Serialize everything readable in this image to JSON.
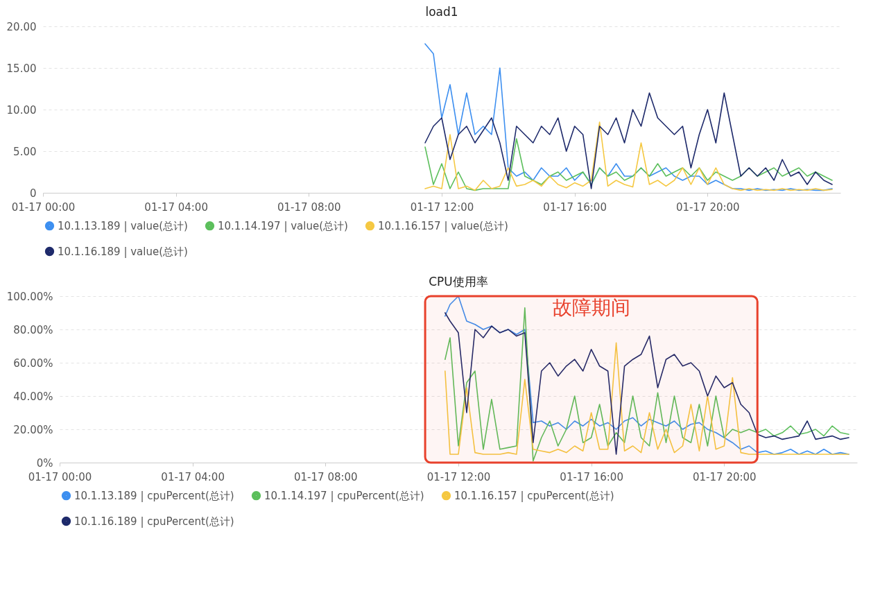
{
  "chart_data": [
    {
      "type": "line",
      "title": "load1",
      "legend": "bottom",
      "grid": "y",
      "line_style": "solid",
      "x": [
        "--01-17T11:30",
        "--01-17T11:45",
        "--01-17T12:00",
        "--01-17T12:15",
        "--01-17T12:30",
        "--01-17T12:45",
        "--01-17T13:00",
        "--01-17T13:15",
        "--01-17T13:30",
        "--01-17T13:45",
        "--01-17T14:00",
        "--01-17T14:15",
        "--01-17T14:30",
        "--01-17T14:45",
        "--01-17T15:00",
        "--01-17T15:15",
        "--01-17T15:30",
        "--01-17T15:45",
        "--01-17T16:00",
        "--01-17T16:15",
        "--01-17T16:30",
        "--01-17T16:45",
        "--01-17T17:00",
        "--01-17T17:15",
        "--01-17T17:30",
        "--01-17T17:45",
        "--01-17T18:00",
        "--01-17T18:15",
        "--01-17T18:30",
        "--01-17T18:45",
        "--01-17T19:00",
        "--01-17T19:15",
        "--01-17T19:30",
        "--01-17T19:45",
        "--01-17T20:00",
        "--01-17T20:15",
        "--01-17T20:30",
        "--01-17T20:45",
        "--01-17T21:00",
        "--01-17T21:15",
        "--01-17T21:30",
        "--01-17T21:45",
        "--01-17T22:00",
        "--01-17T22:15",
        "--01-17T22:30",
        "--01-17T22:45",
        "--01-17T23:00",
        "--01-17T23:15",
        "--01-17T23:30",
        "--01-17T23:45"
      ],
      "xlim": [
        "--01-17T00:00",
        "--01-18T00:00"
      ],
      "xticks": [
        {
          "value": "--01-17T00:00",
          "label": "01-17 00:00"
        },
        {
          "value": "--01-17T04:00",
          "label": "01-17 04:00"
        },
        {
          "value": "--01-17T08:00",
          "label": "01-17 08:00"
        },
        {
          "value": "--01-17T12:00",
          "label": "01-17 12:00"
        },
        {
          "value": "--01-17T16:00",
          "label": "01-17 16:00"
        },
        {
          "value": "--01-17T20:00",
          "label": "01-17 20:00"
        }
      ],
      "ylim": [
        0,
        20
      ],
      "yticks": [
        0,
        {
          "value": 5,
          "label": "5.00"
        },
        {
          "value": 10,
          "label": "10.00"
        },
        {
          "value": 15,
          "label": "15.00"
        },
        {
          "value": 20,
          "label": "20.00"
        }
      ],
      "series": [
        {
          "name": "10.1.13.189 | value(总计)",
          "color": "#3d8ff0",
          "values": [
            17.9,
            16.7,
            9,
            13,
            7,
            12,
            7,
            8,
            7,
            15,
            3,
            2,
            2.5,
            1.5,
            3,
            2,
            2,
            3,
            1.5,
            2.5,
            1,
            3,
            2,
            3.5,
            2,
            2,
            3,
            2,
            2.5,
            3,
            2,
            1.5,
            2,
            2,
            1,
            1.5,
            1,
            0.5,
            0.5,
            0.3,
            0.5,
            0.3,
            0.4,
            0.3,
            0.5,
            0.3,
            0.4,
            0.3,
            0.3,
            0.5
          ]
        },
        {
          "name": "10.1.14.197 | value(总计)",
          "color": "#5cbf5c",
          "values": [
            5.5,
            1,
            3.5,
            0.5,
            2.5,
            0.5,
            0.3,
            0.5,
            0.5,
            0.5,
            0.5,
            6.5,
            2,
            1.5,
            1,
            2,
            2.5,
            1.5,
            2,
            2.5,
            1,
            3,
            2,
            2.5,
            1.5,
            2,
            3,
            2,
            3.5,
            2,
            2.5,
            3,
            2,
            3,
            1.5,
            2.5,
            2,
            1.5,
            2,
            3,
            2,
            2.5,
            3,
            2,
            2.5,
            3,
            2,
            2.5,
            2,
            1.5
          ]
        },
        {
          "name": "10.1.16.157 | value(总计)",
          "color": "#f5c842",
          "values": [
            0.5,
            0.8,
            0.5,
            7,
            0.5,
            0.8,
            0.3,
            1.5,
            0.5,
            0.8,
            3,
            0.8,
            1,
            1.5,
            0.8,
            2,
            1,
            0.6,
            1.2,
            0.8,
            1.5,
            8.5,
            0.8,
            1.5,
            1,
            0.7,
            6,
            1,
            1.5,
            0.8,
            1.5,
            3,
            1,
            3,
            1,
            3,
            1,
            0.5,
            0.3,
            0.5,
            0.3,
            0.4,
            0.3,
            0.5,
            0.3,
            0.4,
            0.3,
            0.5,
            0.3,
            0.4
          ]
        },
        {
          "name": "10.1.16.189 | value(总计)",
          "color": "#1e2a6b",
          "values": [
            6,
            8,
            9,
            4,
            7,
            8,
            6,
            7.5,
            9,
            6,
            1.5,
            8,
            7,
            6,
            8,
            7,
            9,
            5,
            8,
            7,
            0.5,
            8,
            7,
            9,
            6,
            10,
            8,
            12,
            9,
            8,
            7,
            8,
            3,
            7,
            10,
            6,
            12,
            7,
            2,
            3,
            2,
            3,
            1.5,
            4,
            2,
            2.5,
            1,
            2.5,
            1.5,
            1
          ]
        }
      ]
    },
    {
      "type": "line",
      "title": "CPU使用率",
      "legend": "bottom",
      "grid": "y",
      "line_style": "solid",
      "x": [
        "--01-17T11:36",
        "--01-17T11:45",
        "--01-17T12:00",
        "--01-17T12:15",
        "--01-17T12:30",
        "--01-17T12:45",
        "--01-17T13:00",
        "--01-17T13:15",
        "--01-17T13:30",
        "--01-17T13:45",
        "--01-17T14:00",
        "--01-17T14:15",
        "--01-17T14:30",
        "--01-17T14:45",
        "--01-17T15:00",
        "--01-17T15:15",
        "--01-17T15:30",
        "--01-17T15:45",
        "--01-17T16:00",
        "--01-17T16:15",
        "--01-17T16:30",
        "--01-17T16:45",
        "--01-17T17:00",
        "--01-17T17:15",
        "--01-17T17:30",
        "--01-17T17:45",
        "--01-17T18:00",
        "--01-17T18:15",
        "--01-17T18:30",
        "--01-17T18:45",
        "--01-17T19:00",
        "--01-17T19:15",
        "--01-17T19:30",
        "--01-17T19:45",
        "--01-17T20:00",
        "--01-17T20:15",
        "--01-17T20:30",
        "--01-17T20:45",
        "--01-17T21:00",
        "--01-17T21:15",
        "--01-17T21:30",
        "--01-17T21:45",
        "--01-17T22:00",
        "--01-17T22:15",
        "--01-17T22:30",
        "--01-17T22:45",
        "--01-17T23:00",
        "--01-17T23:15",
        "--01-17T23:30",
        "--01-17T23:45"
      ],
      "xlim": [
        "--01-17T00:00",
        "--01-18T00:00"
      ],
      "xticks": [
        {
          "value": "--01-17T00:00",
          "label": "01-17 00:00"
        },
        {
          "value": "--01-17T04:00",
          "label": "01-17 04:00"
        },
        {
          "value": "--01-17T08:00",
          "label": "01-17 08:00"
        },
        {
          "value": "--01-17T12:00",
          "label": "01-17 12:00"
        },
        {
          "value": "--01-17T16:00",
          "label": "01-17 16:00"
        },
        {
          "value": "--01-17T20:00",
          "label": "01-17 20:00"
        }
      ],
      "ylim": [
        0,
        100
      ],
      "yticks": [
        {
          "value": 0,
          "label": "0%"
        },
        {
          "value": 20,
          "label": "20.00%"
        },
        {
          "value": 40,
          "label": "40.00%"
        },
        {
          "value": 60,
          "label": "60.00%"
        },
        {
          "value": 80,
          "label": "80.00%"
        },
        {
          "value": 100,
          "label": "100.00%"
        }
      ],
      "bands": [
        {
          "axis": "x",
          "from": "--01-17T11:00",
          "to": "--01-17T21:00",
          "label": "故障期间",
          "color": "#e8412c"
        }
      ],
      "series": [
        {
          "name": "10.1.13.189 | cpuPercent(总计)",
          "color": "#3d8ff0",
          "values": [
            88,
            95,
            100,
            85,
            83,
            80,
            82,
            78,
            80,
            77,
            80,
            24,
            25,
            22,
            24,
            20,
            25,
            22,
            26,
            22,
            24,
            20,
            25,
            27,
            22,
            26,
            24,
            22,
            25,
            20,
            23,
            24,
            20,
            18,
            15,
            12,
            8,
            10,
            6,
            7,
            5,
            6,
            8,
            5,
            7,
            5,
            8,
            5,
            6,
            5
          ]
        },
        {
          "name": "10.1.14.197 | cpuPercent(总计)",
          "color": "#5cbf5c",
          "values": [
            62,
            75,
            10,
            48,
            55,
            8,
            38,
            8,
            9,
            10,
            93,
            1,
            15,
            25,
            10,
            20,
            40,
            12,
            15,
            35,
            10,
            18,
            12,
            40,
            15,
            10,
            42,
            12,
            40,
            15,
            12,
            35,
            10,
            40,
            15,
            20,
            18,
            20,
            18,
            20,
            16,
            18,
            22,
            17,
            18,
            20,
            16,
            22,
            18,
            17
          ]
        },
        {
          "name": "10.1.16.157 | cpuPercent(总计)",
          "color": "#f5c842",
          "values": [
            55,
            5,
            5,
            45,
            6,
            5,
            5,
            5,
            6,
            5,
            50,
            8,
            7,
            6,
            8,
            6,
            10,
            7,
            30,
            8,
            8,
            72,
            7,
            10,
            6,
            30,
            8,
            20,
            6,
            10,
            35,
            7,
            40,
            8,
            10,
            51,
            6,
            5,
            5,
            5,
            5,
            5,
            5,
            5,
            5,
            5,
            5,
            5,
            5,
            5
          ]
        },
        {
          "name": "10.1.16.189 | cpuPercent(总计)",
          "color": "#1e2a6b",
          "values": [
            90,
            85,
            78,
            30,
            80,
            75,
            82,
            78,
            80,
            76,
            78,
            12,
            55,
            60,
            52,
            58,
            62,
            55,
            68,
            58,
            55,
            5,
            58,
            62,
            65,
            76,
            45,
            62,
            65,
            58,
            60,
            55,
            40,
            52,
            45,
            48,
            35,
            30,
            17,
            15,
            16,
            14,
            15,
            16,
            25,
            14,
            15,
            16,
            14,
            15
          ]
        }
      ]
    }
  ]
}
